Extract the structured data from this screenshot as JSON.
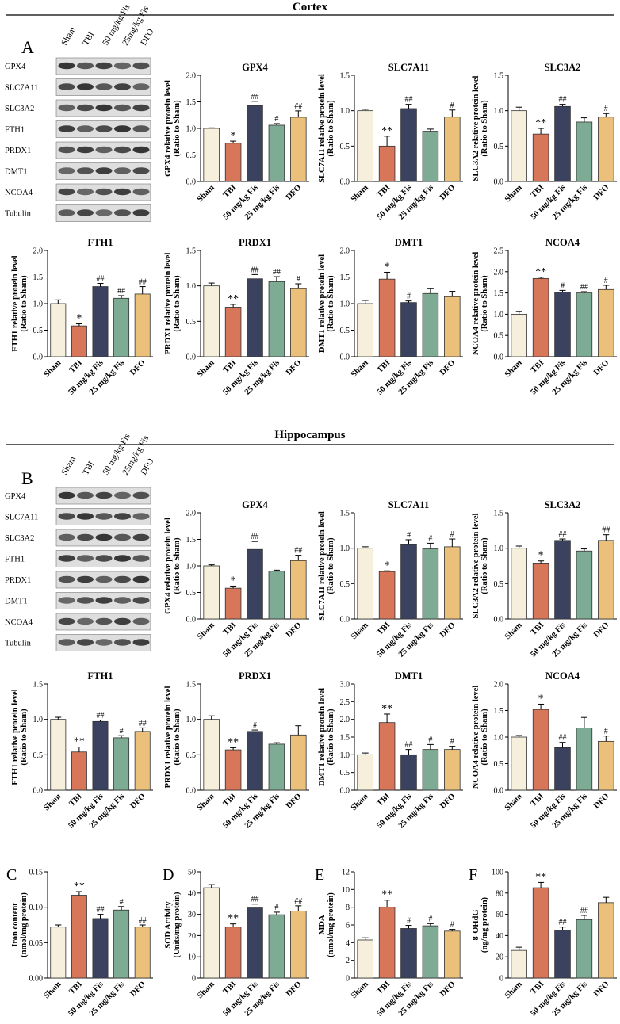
{
  "sections": {
    "cortex": {
      "title": "Cortex",
      "panel_letter": "A"
    },
    "hippocampus": {
      "title": "Hippocampus",
      "panel_letter": "B"
    }
  },
  "colors": [
    "#f5efdc",
    "#d8765a",
    "#3b4260",
    "#7dab93",
    "#ebc07b"
  ],
  "blot": {
    "lane_labels": [
      "Sham",
      "TBI",
      "50 mg/kg Fis",
      "25mg/kg Fis",
      "DFO"
    ],
    "row_labels": [
      "GPX4",
      "SLC7A11",
      "SLC3A2",
      "FTH1",
      "PRDX1",
      "DMT1",
      "NCOA4",
      "Tubulin"
    ]
  },
  "chart_data": [
    {
      "id": "ctx-gpx4",
      "type": "bar",
      "section": "Cortex",
      "title": "GPX4",
      "ylabel": "GPX4 relative protein level",
      "ylabel2": "(Ratio to Sham)",
      "categories": [
        "Sham",
        "TBI",
        "50 mg/kg Fis",
        "25 mg/kg Fis",
        "DFO"
      ],
      "values": [
        1.0,
        0.72,
        1.43,
        1.06,
        1.21
      ],
      "errors": [
        0.01,
        0.04,
        0.08,
        0.03,
        0.12
      ],
      "annotations": [
        "",
        "*",
        "##",
        "#",
        "##"
      ],
      "ylim": [
        0,
        2.0
      ],
      "yticks": [
        "0.0",
        "0.5",
        "1.0",
        "1.5",
        "2.0"
      ]
    },
    {
      "id": "ctx-slc7a11",
      "type": "bar",
      "section": "Cortex",
      "title": "SLC7A11",
      "ylabel": "SLC7A11 relative protein level",
      "ylabel2": "(Ratio to Sham)",
      "categories": [
        "Sham",
        "TBI",
        "50 mg/kg Fis",
        "25 mg/kg Fis",
        "DFO"
      ],
      "values": [
        1.0,
        0.5,
        1.03,
        0.71,
        0.91
      ],
      "errors": [
        0.02,
        0.14,
        0.06,
        0.03,
        0.1
      ],
      "annotations": [
        "",
        "**",
        "##",
        "",
        "#"
      ],
      "ylim": [
        0,
        1.5
      ],
      "yticks": [
        "0.0",
        "0.5",
        "1.0",
        "1.5"
      ]
    },
    {
      "id": "ctx-slc3a2",
      "type": "bar",
      "section": "Cortex",
      "title": "SLC3A2",
      "ylabel": "SLC3A2 relative protein level",
      "ylabel2": "(Ratio to Sham)",
      "categories": [
        "Sham",
        "TBI",
        "50 mg/kg Fis",
        "25 mg/kg Fis",
        "DFO"
      ],
      "values": [
        1.0,
        0.67,
        1.06,
        0.84,
        0.91
      ],
      "errors": [
        0.05,
        0.08,
        0.03,
        0.06,
        0.05
      ],
      "annotations": [
        "",
        "**",
        "##",
        "",
        "#"
      ],
      "ylim": [
        0,
        1.5
      ],
      "yticks": [
        "0.0",
        "0.5",
        "1.0",
        "1.5"
      ]
    },
    {
      "id": "ctx-fth1",
      "type": "bar",
      "section": "Cortex",
      "title": "FTH1",
      "ylabel": "FTH1 relative protein level",
      "ylabel2": "(Ratio to Sham)",
      "categories": [
        "Sham",
        "TBI",
        "50 mg/kg Fis",
        "25 mg/kg Fis",
        "DFO"
      ],
      "values": [
        1.0,
        0.58,
        1.32,
        1.1,
        1.18
      ],
      "errors": [
        0.07,
        0.04,
        0.06,
        0.05,
        0.14
      ],
      "annotations": [
        "",
        "*",
        "##",
        "##",
        "##"
      ],
      "ylim": [
        0,
        2.0
      ],
      "yticks": [
        "0.0",
        "0.5",
        "1.0",
        "1.5",
        "2.0"
      ]
    },
    {
      "id": "ctx-prdx1",
      "type": "bar",
      "section": "Cortex",
      "title": "PRDX1",
      "ylabel": "PRDX1 relative protein level",
      "ylabel2": "(Ratio to Sham)",
      "categories": [
        "Sham",
        "TBI",
        "50 mg/kg Fis",
        "25 mg/kg Fis",
        "DFO"
      ],
      "values": [
        1.0,
        0.7,
        1.1,
        1.06,
        0.96
      ],
      "errors": [
        0.04,
        0.04,
        0.06,
        0.07,
        0.07
      ],
      "annotations": [
        "",
        "**",
        "##",
        "##",
        "#"
      ],
      "ylim": [
        0,
        1.5
      ],
      "yticks": [
        "0.0",
        "0.5",
        "1.0",
        "1.5"
      ]
    },
    {
      "id": "ctx-dmt1",
      "type": "bar",
      "section": "Cortex",
      "title": "DMT1",
      "ylabel": "DMT1 relative protein level",
      "ylabel2": "(Ratio to Sham)",
      "categories": [
        "Sham",
        "TBI",
        "50 mg/kg Fis",
        "25 mg/kg Fis",
        "DFO"
      ],
      "values": [
        1.0,
        1.46,
        1.02,
        1.19,
        1.13
      ],
      "errors": [
        0.06,
        0.13,
        0.03,
        0.09,
        0.1
      ],
      "annotations": [
        "",
        "*",
        "#",
        "",
        ""
      ],
      "ylim": [
        0,
        2.0
      ],
      "yticks": [
        "0.0",
        "0.5",
        "1.0",
        "1.5",
        "2.0"
      ]
    },
    {
      "id": "ctx-ncoa4",
      "type": "bar",
      "section": "Cortex",
      "title": "NCOA4",
      "ylabel": "NCOA4 relative protein level",
      "ylabel2": "(Ratio to Sham)",
      "categories": [
        "Sham",
        "TBI",
        "50 mg/kg Fis",
        "25 mg/kg Fis",
        "DFO"
      ],
      "values": [
        1.0,
        1.84,
        1.52,
        1.5,
        1.58
      ],
      "errors": [
        0.06,
        0.03,
        0.04,
        0.03,
        0.1
      ],
      "annotations": [
        "",
        "**",
        "#",
        "##",
        "#"
      ],
      "ylim": [
        0,
        2.5
      ],
      "yticks": [
        "0.0",
        "0.5",
        "1.0",
        "1.5",
        "2.0",
        "2.5"
      ]
    },
    {
      "id": "hip-gpx4",
      "type": "bar",
      "section": "Hippocampus",
      "title": "GPX4",
      "ylabel": "GPX4 relative protein level",
      "ylabel2": "(Ratio to Sham)",
      "categories": [
        "Sham",
        "TBI",
        "50 mg/kg Fis",
        "25 mg/kg Fis",
        "DFO"
      ],
      "values": [
        1.0,
        0.58,
        1.31,
        0.9,
        1.1
      ],
      "errors": [
        0.02,
        0.04,
        0.15,
        0.02,
        0.1
      ],
      "annotations": [
        "",
        "*",
        "##",
        "",
        "##"
      ],
      "ylim": [
        0,
        2.0
      ],
      "yticks": [
        "0.0",
        "0.5",
        "1.0",
        "1.5",
        "2.0"
      ]
    },
    {
      "id": "hip-slc7a11",
      "type": "bar",
      "section": "Hippocampus",
      "title": "SLC7A11",
      "ylabel": "SLC7A11 relative protein level",
      "ylabel2": "(Ratio to Sham)",
      "categories": [
        "Sham",
        "TBI",
        "50 mg/kg Fis",
        "25 mg/kg Fis",
        "DFO"
      ],
      "values": [
        1.0,
        0.67,
        1.05,
        0.99,
        1.02
      ],
      "errors": [
        0.02,
        0.01,
        0.07,
        0.08,
        0.11
      ],
      "annotations": [
        "",
        "*",
        "#",
        "#",
        "#"
      ],
      "ylim": [
        0,
        1.5
      ],
      "yticks": [
        "0.0",
        "0.5",
        "1.0",
        "1.5"
      ]
    },
    {
      "id": "hip-slc3a2",
      "type": "bar",
      "section": "Hippocampus",
      "title": "SLC3A2",
      "ylabel": "SLC3A2 relative protein level",
      "ylabel2": "(Ratio to Sham)",
      "categories": [
        "Sham",
        "TBI",
        "50 mg/kg Fis",
        "25 mg/kg Fis",
        "DFO"
      ],
      "values": [
        1.0,
        0.79,
        1.11,
        0.96,
        1.11
      ],
      "errors": [
        0.03,
        0.03,
        0.02,
        0.03,
        0.08
      ],
      "annotations": [
        "",
        "*",
        "##",
        "",
        "##"
      ],
      "ylim": [
        0,
        1.5
      ],
      "yticks": [
        "0.0",
        "0.5",
        "1.0",
        "1.5"
      ]
    },
    {
      "id": "hip-fth1",
      "type": "bar",
      "section": "Hippocampus",
      "title": "FTH1",
      "ylabel": "FTH1 relative protein level",
      "ylabel2": "(Ratio to Sham)",
      "categories": [
        "Sham",
        "TBI",
        "50 mg/kg Fis",
        "25 mg/kg Fis",
        "DFO"
      ],
      "values": [
        1.0,
        0.54,
        0.97,
        0.74,
        0.83
      ],
      "errors": [
        0.03,
        0.07,
        0.02,
        0.03,
        0.05
      ],
      "annotations": [
        "",
        "**",
        "##",
        "#",
        "##"
      ],
      "ylim": [
        0,
        1.5
      ],
      "yticks": [
        "0.0",
        "0.5",
        "1.0",
        "1.5"
      ]
    },
    {
      "id": "hip-prdx1",
      "type": "bar",
      "section": "Hippocampus",
      "title": "PRDX1",
      "ylabel": "PRDX1 relative protein level",
      "ylabel2": "(Ratio to Sham)",
      "categories": [
        "Sham",
        "TBI",
        "50 mg/kg Fis",
        "25 mg/kg Fis",
        "DFO"
      ],
      "values": [
        1.0,
        0.57,
        0.83,
        0.65,
        0.78
      ],
      "errors": [
        0.05,
        0.03,
        0.02,
        0.02,
        0.13
      ],
      "annotations": [
        "",
        "**",
        "#",
        "",
        ""
      ],
      "ylim": [
        0,
        1.5
      ],
      "yticks": [
        "0.0",
        "0.5",
        "1.0",
        "1.5"
      ]
    },
    {
      "id": "hip-dmt1",
      "type": "bar",
      "section": "Hippocampus",
      "title": "DMT1",
      "ylabel": "DMT1 relative protein level",
      "ylabel2": "(Ratio to Sham)",
      "categories": [
        "Sham",
        "TBI",
        "50 mg/kg Fis",
        "25 mg/kg Fis",
        "DFO"
      ],
      "values": [
        1.0,
        1.91,
        1.0,
        1.15,
        1.15
      ],
      "errors": [
        0.05,
        0.24,
        0.15,
        0.14,
        0.09
      ],
      "annotations": [
        "",
        "**",
        "##",
        "#",
        "#"
      ],
      "ylim": [
        0,
        3.0
      ],
      "yticks": [
        "0.0",
        "0.5",
        "1.0",
        "1.5",
        "2.0",
        "2.5",
        "3.0"
      ]
    },
    {
      "id": "hip-ncoa4",
      "type": "bar",
      "section": "Hippocampus",
      "title": "NCOA4",
      "ylabel": "NCOA4 relative protein level",
      "ylabel2": "(Ratio to Sham)",
      "categories": [
        "Sham",
        "TBI",
        "50 mg/kg Fis",
        "25 mg/kg Fis",
        "DFO"
      ],
      "values": [
        1.0,
        1.52,
        0.8,
        1.17,
        0.92
      ],
      "errors": [
        0.03,
        0.1,
        0.1,
        0.2,
        0.1
      ],
      "annotations": [
        "",
        "*",
        "##",
        "",
        "#"
      ],
      "ylim": [
        0,
        2.0
      ],
      "yticks": [
        "0.0",
        "0.5",
        "1.0",
        "1.5",
        "2.0"
      ]
    },
    {
      "id": "c-iron",
      "type": "bar",
      "letter": "C",
      "title": "",
      "ylabel": "Iron content",
      "ylabel2": "(nmol/mg protein)",
      "categories": [
        "Sham",
        "TBI",
        "50 mg/kg Fis",
        "25 mg/kg Fis",
        "DFO"
      ],
      "values": [
        0.072,
        0.117,
        0.084,
        0.096,
        0.072
      ],
      "errors": [
        0.003,
        0.005,
        0.006,
        0.005,
        0.003
      ],
      "annotations": [
        "",
        "**",
        "##",
        "#",
        "##"
      ],
      "ylim": [
        0,
        0.15
      ],
      "yticks": [
        "0.00",
        "0.05",
        "0.10",
        "0.15"
      ]
    },
    {
      "id": "d-sod",
      "type": "bar",
      "letter": "D",
      "title": "",
      "ylabel": "SOD Activity",
      "ylabel2": "(Units/mg protein)",
      "categories": [
        "Sham",
        "TBI",
        "50 mg/kg Fis",
        "25 mg/kg Fis",
        "DFO"
      ],
      "values": [
        42.5,
        24.0,
        33.0,
        29.8,
        31.5
      ],
      "errors": [
        1.5,
        1.5,
        1.8,
        1.2,
        2.5
      ],
      "annotations": [
        "",
        "**",
        "##",
        "#",
        "##"
      ],
      "ylim": [
        0,
        50
      ],
      "yticks": [
        "0",
        "10",
        "20",
        "30",
        "40",
        "50"
      ]
    },
    {
      "id": "e-mda",
      "type": "bar",
      "letter": "E",
      "title": "",
      "ylabel": "MDA",
      "ylabel2": "(nmol/mg protein)",
      "categories": [
        "Sham",
        "TBI",
        "50 mg/kg Fis",
        "25 mg/kg Fis",
        "DFO"
      ],
      "values": [
        4.3,
        8.0,
        5.6,
        5.9,
        5.3
      ],
      "errors": [
        0.25,
        0.8,
        0.35,
        0.25,
        0.2
      ],
      "annotations": [
        "",
        "**",
        "#",
        "#",
        "#"
      ],
      "ylim": [
        0,
        12
      ],
      "yticks": [
        "0",
        "2",
        "4",
        "6",
        "8",
        "10",
        "12"
      ]
    },
    {
      "id": "f-8ohdg",
      "type": "bar",
      "letter": "F",
      "title": "",
      "ylabel": "8-OHdG",
      "ylabel2": "(ng/mg protein)",
      "categories": [
        "Sham",
        "TBI",
        "50 mg/kg Fis",
        "25 mg/kg Fis",
        "DFO"
      ],
      "values": [
        26,
        85,
        45,
        55,
        71
      ],
      "errors": [
        3,
        5,
        3,
        4,
        5
      ],
      "annotations": [
        "",
        "**",
        "##",
        "##",
        ""
      ],
      "ylim": [
        0,
        100
      ],
      "yticks": [
        "0",
        "20",
        "40",
        "60",
        "80",
        "100"
      ]
    }
  ]
}
